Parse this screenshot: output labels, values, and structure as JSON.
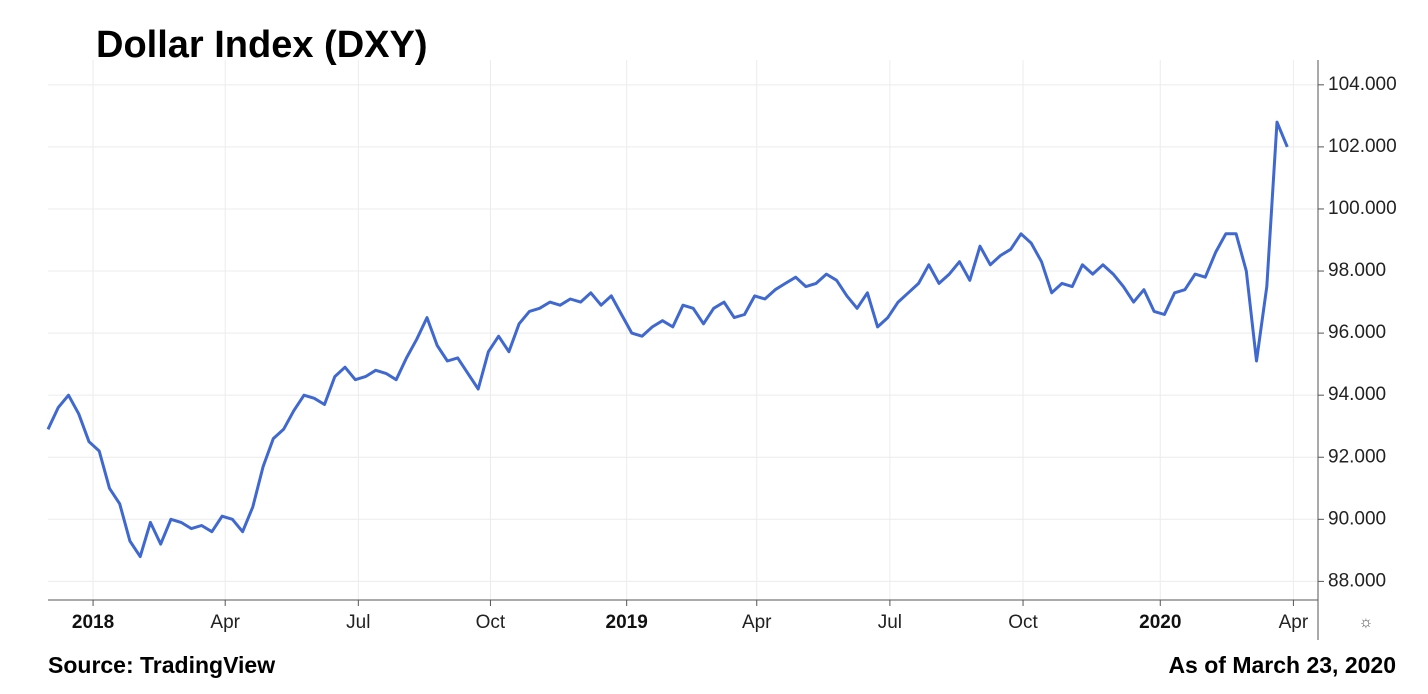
{
  "chart_data": {
    "type": "line",
    "title": "Dollar Index (DXY)",
    "source": "Source: TradingView",
    "as_of": "As of March 23, 2020",
    "series": [
      {
        "name": "DXY",
        "color": "#3f68d0",
        "values": [
          92.9,
          93.6,
          94.0,
          93.4,
          92.5,
          92.2,
          91.0,
          90.5,
          89.3,
          88.8,
          89.9,
          89.2,
          90.0,
          89.9,
          89.7,
          89.8,
          89.6,
          90.1,
          90.0,
          89.6,
          90.4,
          91.7,
          92.6,
          92.9,
          93.5,
          94.0,
          93.9,
          93.7,
          94.6,
          94.9,
          94.5,
          94.6,
          94.8,
          94.7,
          94.5,
          95.2,
          95.8,
          96.5,
          95.6,
          95.1,
          95.2,
          94.7,
          94.2,
          95.4,
          95.9,
          95.4,
          96.3,
          96.7,
          96.8,
          97.0,
          96.9,
          97.1,
          97.0,
          97.3,
          96.9,
          97.2,
          96.6,
          96.0,
          95.9,
          96.2,
          96.4,
          96.2,
          96.9,
          96.8,
          96.3,
          96.8,
          97.0,
          96.5,
          96.6,
          97.2,
          97.1,
          97.4,
          97.6,
          97.8,
          97.5,
          97.6,
          97.9,
          97.7,
          97.2,
          96.8,
          97.3,
          96.2,
          96.5,
          97.0,
          97.3,
          97.6,
          98.2,
          97.6,
          97.9,
          98.3,
          97.7,
          98.8,
          98.2,
          98.5,
          98.7,
          99.2,
          98.9,
          98.3,
          97.3,
          97.6,
          97.5,
          98.2,
          97.9,
          98.2,
          97.9,
          97.5,
          97.0,
          97.4,
          96.7,
          96.6,
          97.3,
          97.4,
          97.9,
          97.8,
          98.6,
          99.2,
          99.2,
          98.0,
          95.1,
          97.5,
          102.8,
          102.0
        ]
      }
    ],
    "xlim": [
      0,
      124
    ],
    "xticks": [
      {
        "value": 4.4,
        "label": "2018"
      },
      {
        "value": 17.3,
        "label": "Apr"
      },
      {
        "value": 30.3,
        "label": "Jul"
      },
      {
        "value": 43.2,
        "label": "Oct"
      },
      {
        "value": 56.5,
        "label": "2019"
      },
      {
        "value": 69.2,
        "label": "Apr"
      },
      {
        "value": 82.2,
        "label": "Jul"
      },
      {
        "value": 95.2,
        "label": "Oct"
      },
      {
        "value": 108.6,
        "label": "2020"
      },
      {
        "value": 121.6,
        "label": "Apr"
      }
    ],
    "ylim": [
      87.4,
      104.8
    ],
    "yticks": [
      {
        "value": 88,
        "label": "88.000"
      },
      {
        "value": 90,
        "label": "90.000"
      },
      {
        "value": 92,
        "label": "92.000"
      },
      {
        "value": 94,
        "label": "94.000"
      },
      {
        "value": 96,
        "label": "96.000"
      },
      {
        "value": 98,
        "label": "98.000"
      },
      {
        "value": 100,
        "label": "100.000"
      },
      {
        "value": 102,
        "label": "102.000"
      },
      {
        "value": 104,
        "label": "104.000"
      }
    ],
    "grid": true
  }
}
